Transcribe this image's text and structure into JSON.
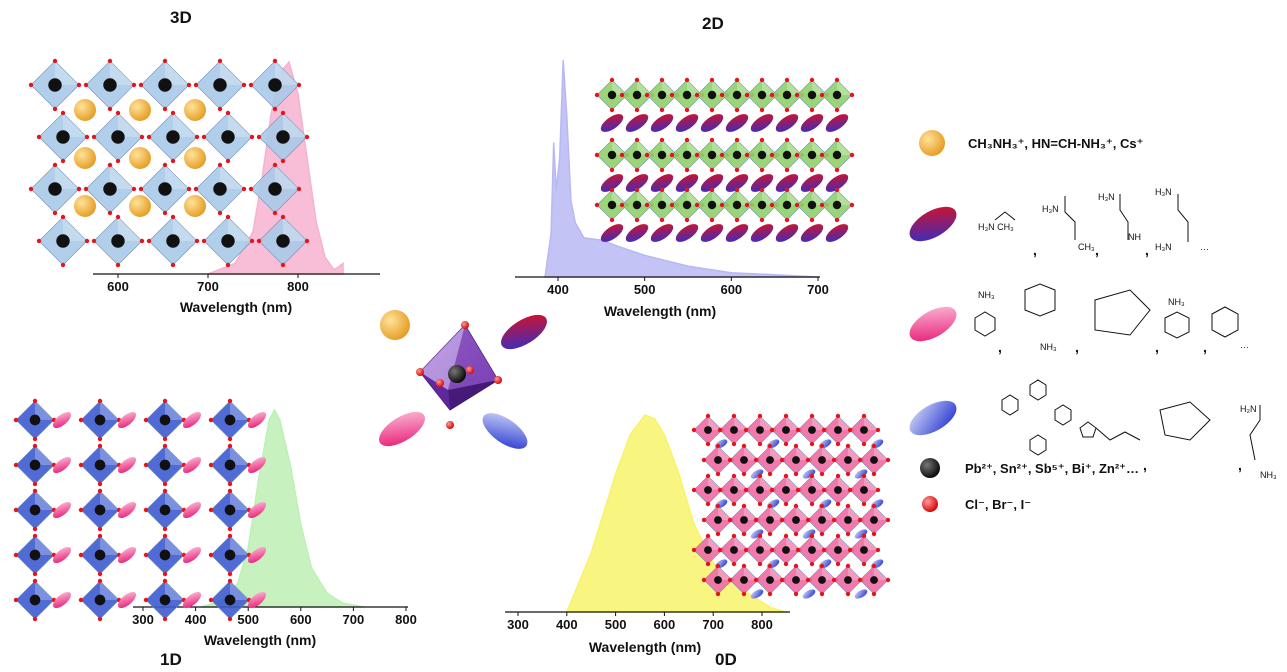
{
  "panels": {
    "p3d": {
      "title": "3D"
    },
    "p2d": {
      "title": "2D"
    },
    "p1d": {
      "title": "1D"
    },
    "p0d": {
      "title": "0D"
    }
  },
  "chart_data": [
    {
      "type": "area",
      "panel": "3D",
      "xlabel": "Wavelength (nm)",
      "ticks": [
        "600",
        "700",
        "800"
      ],
      "xlim": [
        590,
        850
      ],
      "x": [
        700,
        730,
        750,
        760,
        770,
        780,
        790,
        800,
        810,
        820,
        830,
        840,
        850
      ],
      "y": [
        0,
        0.05,
        0.2,
        0.45,
        0.75,
        0.95,
        1.0,
        0.85,
        0.55,
        0.25,
        0.08,
        0.02,
        0.05
      ],
      "color": "#f7b2d0"
    },
    {
      "type": "area",
      "panel": "2D",
      "xlabel": "Wavelength (nm)",
      "ticks": [
        "400",
        "500",
        "600",
        "700"
      ],
      "xlim": [
        355,
        700
      ],
      "x": [
        385,
        392,
        395,
        398,
        402,
        406,
        410,
        415,
        420,
        430,
        450,
        470,
        500,
        550,
        600,
        650,
        700
      ],
      "y": [
        0,
        0.2,
        0.62,
        0.4,
        0.55,
        1.0,
        0.75,
        0.35,
        0.25,
        0.18,
        0.17,
        0.14,
        0.1,
        0.05,
        0.02,
        0.01,
        0
      ],
      "color": "#b9b8f3"
    },
    {
      "type": "area",
      "panel": "1D",
      "xlabel": "Wavelength (nm)",
      "ticks": [
        "300",
        "400",
        "500",
        "600",
        "700",
        "800"
      ],
      "xlim": [
        300,
        800
      ],
      "x": [
        410,
        450,
        480,
        500,
        520,
        540,
        550,
        560,
        580,
        600,
        620,
        650,
        680,
        720
      ],
      "y": [
        0,
        0.03,
        0.12,
        0.3,
        0.65,
        0.95,
        1.0,
        0.95,
        0.72,
        0.42,
        0.2,
        0.07,
        0.02,
        0
      ],
      "color": "#bdf0b5"
    },
    {
      "type": "area",
      "panel": "0D",
      "xlabel": "Wavelength (nm)",
      "ticks": [
        "300",
        "400",
        "500",
        "600",
        "700",
        "800"
      ],
      "xlim": [
        300,
        850
      ],
      "x": [
        400,
        450,
        500,
        530,
        560,
        580,
        600,
        630,
        660,
        700,
        740,
        780,
        820,
        850
      ],
      "y": [
        0,
        0.3,
        0.7,
        0.9,
        1.0,
        0.98,
        0.9,
        0.7,
        0.45,
        0.25,
        0.15,
        0.08,
        0.02,
        0
      ],
      "color": "#f7f36a"
    }
  ],
  "legend": {
    "a_cation": {
      "text": "CH₃NH₃⁺, HN=CH-NH₃⁺, Cs⁺"
    },
    "metal": {
      "text": "Pb²⁺, Sn²⁺, Sb⁵⁺, Bi⁺, Zn²⁺…"
    },
    "halide": {
      "text": "Cl⁻, Br⁻, I⁻"
    }
  },
  "colors": {
    "octa_blue": "#a9c9e8",
    "octa_green": "#8fd16a",
    "octa_pink": "#f06aa3",
    "octa_navy": "#3e5bd1",
    "a_site": "#f5b949",
    "halide": "#e8141c"
  }
}
